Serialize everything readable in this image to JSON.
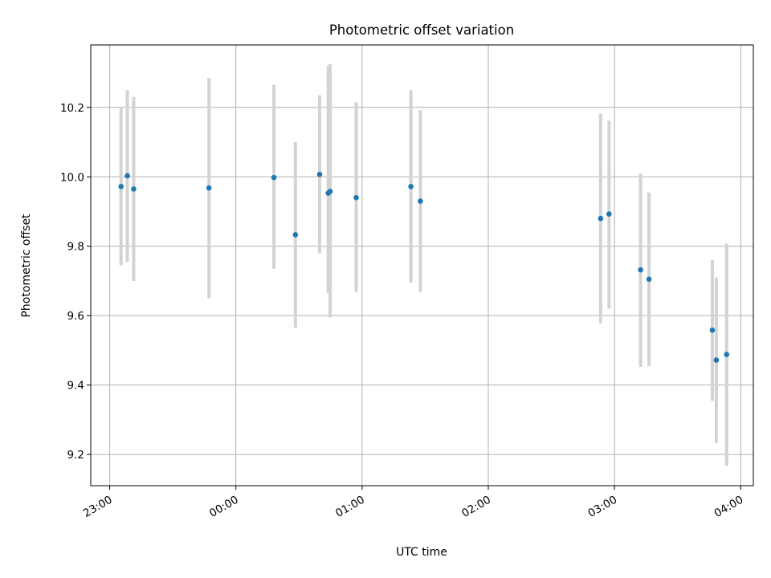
{
  "chart_data": {
    "type": "scatter",
    "title": "Photometric offset variation",
    "xlabel": "UTC time",
    "ylabel": "Photometric offset",
    "x_unit": "minutes",
    "x_tick_labels": [
      {
        "t": -60,
        "label": "23:00"
      },
      {
        "t": 0,
        "label": "00:00"
      },
      {
        "t": 60,
        "label": "01:00"
      },
      {
        "t": 120,
        "label": "02:00"
      },
      {
        "t": 180,
        "label": "03:00"
      },
      {
        "t": 240,
        "label": "04:00"
      }
    ],
    "y_ticks": [
      "9.2",
      "9.4",
      "9.6",
      "9.8",
      "10.0",
      "10.2"
    ],
    "xlim": [
      -69,
      246
    ],
    "ylim": [
      9.11,
      10.38
    ],
    "grid": true,
    "point_color": "#1f77b4",
    "errorbar_color": "#d3d3d3",
    "series": [
      {
        "points": [
          {
            "t": -54.6,
            "y": 9.972,
            "lo": 9.745,
            "hi": 10.2
          },
          {
            "t": -51.6,
            "y": 10.003,
            "lo": 9.755,
            "hi": 10.25
          },
          {
            "t": -48.6,
            "y": 9.965,
            "lo": 9.7,
            "hi": 10.23
          },
          {
            "t": -12.8,
            "y": 9.968,
            "lo": 9.65,
            "hi": 10.285
          },
          {
            "t": 18.1,
            "y": 9.998,
            "lo": 9.735,
            "hi": 10.265
          },
          {
            "t": 28.3,
            "y": 9.833,
            "lo": 9.565,
            "hi": 10.1
          },
          {
            "t": 39.8,
            "y": 10.007,
            "lo": 9.78,
            "hi": 10.235
          },
          {
            "t": 43.9,
            "y": 9.953,
            "lo": 9.665,
            "hi": 10.32
          },
          {
            "t": 44.8,
            "y": 9.958,
            "lo": 9.595,
            "hi": 10.325
          },
          {
            "t": 57.2,
            "y": 9.94,
            "lo": 9.668,
            "hi": 10.215
          },
          {
            "t": 83.2,
            "y": 9.972,
            "lo": 9.695,
            "hi": 10.25
          },
          {
            "t": 87.7,
            "y": 9.93,
            "lo": 9.668,
            "hi": 10.192
          },
          {
            "t": 173.4,
            "y": 9.88,
            "lo": 9.578,
            "hi": 10.182
          },
          {
            "t": 177.4,
            "y": 9.893,
            "lo": 9.62,
            "hi": 10.162
          },
          {
            "t": 192.4,
            "y": 9.732,
            "lo": 9.452,
            "hi": 10.01
          },
          {
            "t": 196.4,
            "y": 9.705,
            "lo": 9.455,
            "hi": 9.955
          },
          {
            "t": 226.5,
            "y": 9.558,
            "lo": 9.355,
            "hi": 9.76
          },
          {
            "t": 228.4,
            "y": 9.472,
            "lo": 9.233,
            "hi": 9.71
          },
          {
            "t": 233.3,
            "y": 9.488,
            "lo": 9.167,
            "hi": 9.808
          }
        ]
      }
    ]
  }
}
